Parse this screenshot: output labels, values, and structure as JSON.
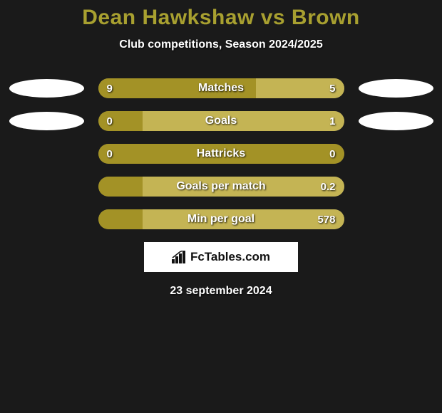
{
  "title": "Dean Hawkshaw vs Brown",
  "subtitle": "Club competitions, Season 2024/2025",
  "date": "23 september 2024",
  "brand": "FcTables.com",
  "colors": {
    "background": "#1a1a1a",
    "title": "#a8a030",
    "bar_left": "#a39226",
    "bar_right": "#c4b454",
    "bar_empty": "#4a4a4a",
    "ellipse": "#ffffff",
    "text": "#ffffff",
    "brand_bg": "#ffffff",
    "brand_text": "#111111"
  },
  "stats": [
    {
      "name": "Matches",
      "left_value": "9",
      "right_value": "5",
      "left_pct": 64.3,
      "right_pct": 35.7,
      "show_ellipses": true,
      "left_color": "#a39226",
      "right_color": "#c4b454"
    },
    {
      "name": "Goals",
      "left_value": "0",
      "right_value": "1",
      "left_pct": 18,
      "right_pct": 82,
      "show_ellipses": true,
      "left_color": "#a39226",
      "right_color": "#c4b454"
    },
    {
      "name": "Hattricks",
      "left_value": "0",
      "right_value": "0",
      "left_pct": 100,
      "right_pct": 0,
      "show_ellipses": false,
      "left_color": "#a39226",
      "right_color": "#c4b454"
    },
    {
      "name": "Goals per match",
      "left_value": "",
      "right_value": "0.2",
      "left_pct": 18,
      "right_pct": 82,
      "show_ellipses": false,
      "left_color": "#a39226",
      "right_color": "#c4b454"
    },
    {
      "name": "Min per goal",
      "left_value": "",
      "right_value": "578",
      "left_pct": 18,
      "right_pct": 82,
      "show_ellipses": false,
      "left_color": "#a39226",
      "right_color": "#c4b454"
    }
  ]
}
